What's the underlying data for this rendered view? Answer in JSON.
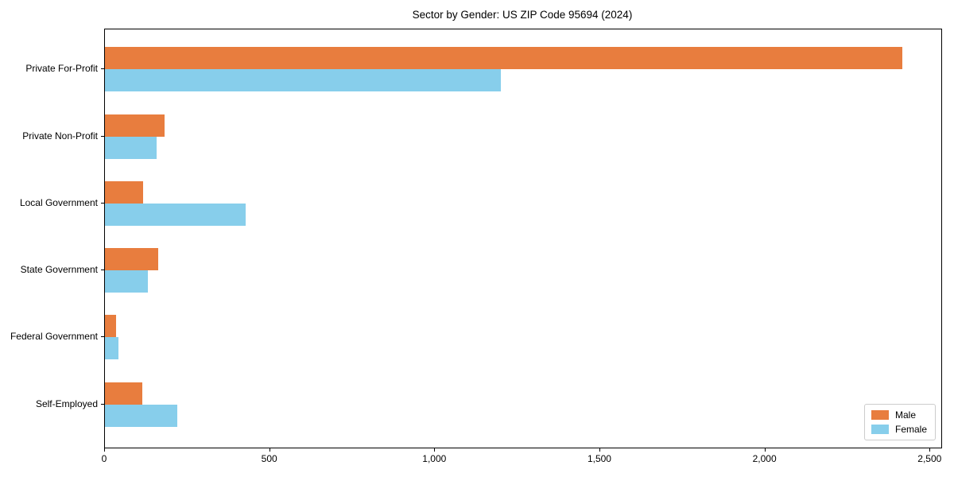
{
  "title": "Sector by Gender: US ZIP Code 95694 (2024)",
  "chart_data": {
    "type": "bar",
    "orientation": "horizontal",
    "title": "Sector by Gender: US ZIP Code 95694 (2024)",
    "categories": [
      "Private For-Profit",
      "Private Non-Profit",
      "Local Government",
      "State Government",
      "Federal Government",
      "Self-Employed"
    ],
    "series": [
      {
        "name": "Male",
        "color": "#e87d3e",
        "values": [
          2415,
          180,
          115,
          162,
          33,
          112
        ]
      },
      {
        "name": "Female",
        "color": "#87ceeb",
        "values": [
          1200,
          157,
          426,
          129,
          42,
          220
        ]
      }
    ],
    "xlabel": "",
    "ylabel": "",
    "xlim": [
      0,
      2533
    ],
    "x_ticks": [
      0,
      500,
      1000,
      1500,
      2000,
      2500
    ],
    "x_tick_labels": [
      "0",
      "500",
      "1,000",
      "1,500",
      "2,000",
      "2,500"
    ],
    "grid": false,
    "legend": {
      "position": "lower-right",
      "entries": [
        "Male",
        "Female"
      ]
    },
    "axis_color": "#000000",
    "background_color": "#ffffff"
  }
}
